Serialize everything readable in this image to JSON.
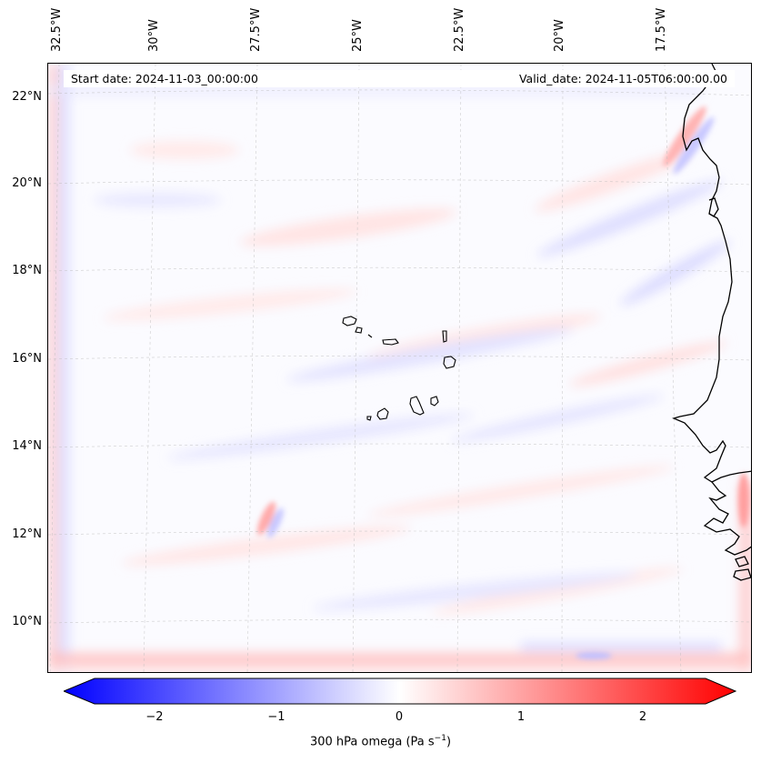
{
  "map": {
    "title_left": "Start date: 2024-11-03_00:00:00",
    "title_right": "Valid_date: 2024-11-05T06:00:00.00",
    "lon_labels": [
      "32.5°W",
      "30°W",
      "27.5°W",
      "25°W",
      "22.5°W",
      "20°W",
      "17.5°W"
    ],
    "lat_labels": [
      "22°N",
      "20°N",
      "18°N",
      "16°N",
      "14°N",
      "12°N",
      "10°N"
    ],
    "features": [
      "Cape Verde islands",
      "West African coastline"
    ]
  },
  "colorbar": {
    "ticks": [
      "−2",
      "−1",
      "0",
      "1",
      "2"
    ],
    "label_main": "300 hPa omega (Pa s",
    "label_exp": "−1",
    "label_end": ")",
    "min_color": "#0000ff",
    "mid_color": "#ffffff",
    "max_color": "#ff0000",
    "range": [
      -2.6,
      2.6
    ]
  }
}
